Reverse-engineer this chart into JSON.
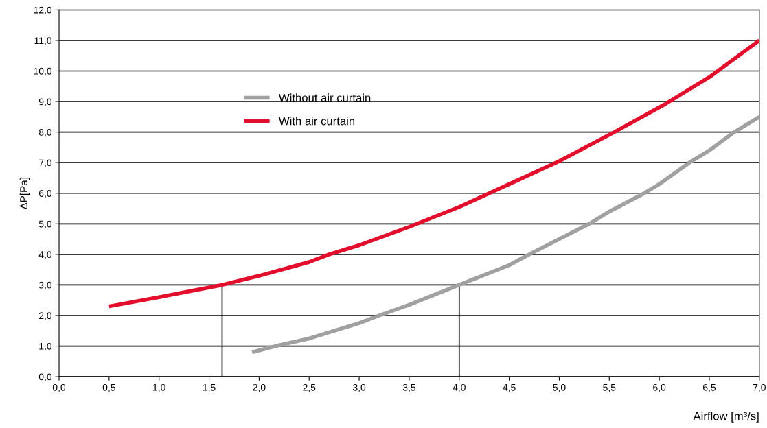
{
  "chart_data": {
    "type": "line",
    "xlabel": "Airflow [m³/s]",
    "ylabel": "ΔP[Pa]",
    "xlim": [
      0,
      7
    ],
    "ylim": [
      0,
      12
    ],
    "xticks": [
      {
        "value": 0,
        "label": "0,0"
      },
      {
        "value": 0.5,
        "label": "0,5"
      },
      {
        "value": 1,
        "label": "1,0"
      },
      {
        "value": 1.5,
        "label": "1,5"
      },
      {
        "value": 2,
        "label": "2,0"
      },
      {
        "value": 2.5,
        "label": "2,5"
      },
      {
        "value": 3,
        "label": "3,0"
      },
      {
        "value": 3.5,
        "label": "3,5"
      },
      {
        "value": 4,
        "label": "4,0"
      },
      {
        "value": 4.5,
        "label": "4,5"
      },
      {
        "value": 5,
        "label": "5,0"
      },
      {
        "value": 5.5,
        "label": "5,5"
      },
      {
        "value": 6,
        "label": "6,0"
      },
      {
        "value": 6.5,
        "label": "6,5"
      },
      {
        "value": 7,
        "label": "7,0"
      }
    ],
    "yticks": [
      {
        "value": 0,
        "label": "0,0"
      },
      {
        "value": 1,
        "label": "1,0"
      },
      {
        "value": 2,
        "label": "2,0"
      },
      {
        "value": 3,
        "label": "3,0"
      },
      {
        "value": 4,
        "label": "4,0"
      },
      {
        "value": 5,
        "label": "5,0"
      },
      {
        "value": 6,
        "label": "6,0"
      },
      {
        "value": 7,
        "label": "7,0"
      },
      {
        "value": 8,
        "label": "8,0"
      },
      {
        "value": 9,
        "label": "9,0"
      },
      {
        "value": 10,
        "label": "10,0"
      },
      {
        "value": 11,
        "label": "11,0"
      },
      {
        "value": 12,
        "label": "12,0"
      }
    ],
    "grid": "y",
    "legend": "top left",
    "series": [
      {
        "name": "Without air curtain",
        "color": "#a0a0a0",
        "x": [
          1.93,
          2.2,
          2.5,
          3.0,
          3.2,
          3.5,
          4.0,
          4.5,
          4.7,
          5.0,
          5.3,
          5.5,
          5.85,
          6.0,
          6.3,
          6.5,
          6.75,
          7.0
        ],
        "values": [
          0.8,
          1.03,
          1.25,
          1.75,
          2.0,
          2.35,
          3.0,
          3.65,
          4.0,
          4.5,
          5.0,
          5.4,
          6.0,
          6.3,
          7.0,
          7.4,
          8.0,
          8.5
        ]
      },
      {
        "name": "With air curtain",
        "color": "#e30e2c",
        "x": [
          0.5,
          1.0,
          1.63,
          2.0,
          2.5,
          2.7,
          3.0,
          3.5,
          4.0,
          4.3,
          4.5,
          5.0,
          5.55,
          6.05,
          6.5,
          7.0
        ],
        "values": [
          2.3,
          2.6,
          3.0,
          3.3,
          3.75,
          4.0,
          4.3,
          4.9,
          5.55,
          6.0,
          6.3,
          7.05,
          8.0,
          8.9,
          9.8,
          11.0
        ]
      },
      {
        "type": "line",
        "color": "#000000",
        "x": [
          1.63,
          1.63
        ],
        "values": [
          0,
          3.0
        ]
      },
      {
        "type": "line",
        "color": "#000000",
        "x": [
          4.0,
          4.0
        ],
        "values": [
          0,
          3.0
        ]
      }
    ]
  }
}
